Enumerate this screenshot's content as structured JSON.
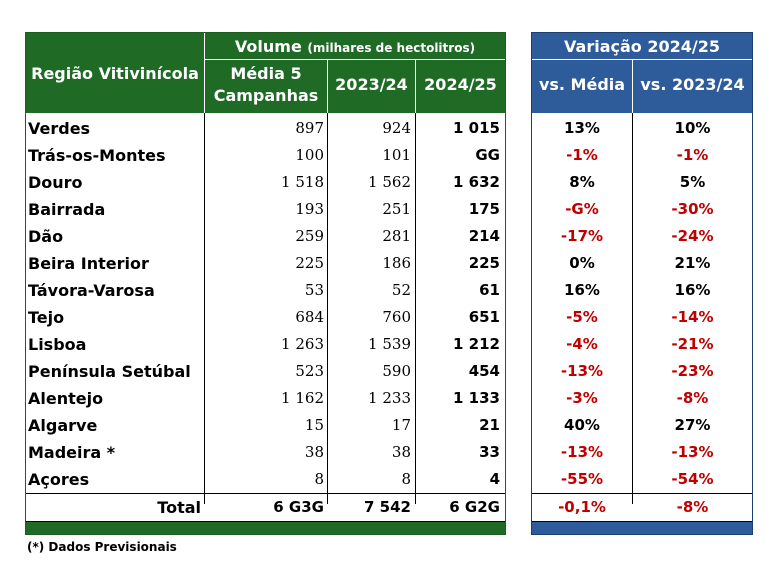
{
  "headers": {
    "region": "Região Vitivinícola",
    "volume": "Volume",
    "volume_unit": "(milhares de hectolitros)",
    "media5": "Média 5",
    "campanhas": "Campanhas",
    "y2023": "2023/24",
    "y2024": "2024/25",
    "variacao": "Variação 2024/25",
    "vs_media": "vs. Média",
    "vs_2023": "vs. 2023/24"
  },
  "rows": [
    {
      "region": "Verdes",
      "media5": "897",
      "y2023": "924",
      "y2024": "1 015",
      "vs_media": "13%",
      "vs_2023": "10%",
      "neg_media": false,
      "neg_2023": false
    },
    {
      "region": "Trás-os-Montes",
      "media5": "100",
      "y2023": "101",
      "y2024": "GG",
      "vs_media": "-1%",
      "vs_2023": "-1%",
      "neg_media": true,
      "neg_2023": true
    },
    {
      "region": "Douro",
      "media5": "1 518",
      "y2023": "1 562",
      "y2024": "1 632",
      "vs_media": "8%",
      "vs_2023": "5%",
      "neg_media": false,
      "neg_2023": false
    },
    {
      "region": "Bairrada",
      "media5": "193",
      "y2023": "251",
      "y2024": "175",
      "vs_media": "-G%",
      "vs_2023": "-30%",
      "neg_media": true,
      "neg_2023": true
    },
    {
      "region": "Dão",
      "media5": "259",
      "y2023": "281",
      "y2024": "214",
      "vs_media": "-17%",
      "vs_2023": "-24%",
      "neg_media": true,
      "neg_2023": true
    },
    {
      "region": "Beira Interior",
      "media5": "225",
      "y2023": "186",
      "y2024": "225",
      "vs_media": "0%",
      "vs_2023": "21%",
      "neg_media": false,
      "neg_2023": false
    },
    {
      "region": "Távora-Varosa",
      "media5": "53",
      "y2023": "52",
      "y2024": "61",
      "vs_media": "16%",
      "vs_2023": "16%",
      "neg_media": false,
      "neg_2023": false
    },
    {
      "region": "Tejo",
      "media5": "684",
      "y2023": "760",
      "y2024": "651",
      "vs_media": "-5%",
      "vs_2023": "-14%",
      "neg_media": true,
      "neg_2023": true
    },
    {
      "region": "Lisboa",
      "media5": "1 263",
      "y2023": "1 539",
      "y2024": "1 212",
      "vs_media": "-4%",
      "vs_2023": "-21%",
      "neg_media": true,
      "neg_2023": true
    },
    {
      "region": "Península Setúbal",
      "media5": "523",
      "y2023": "590",
      "y2024": "454",
      "vs_media": "-13%",
      "vs_2023": "-23%",
      "neg_media": true,
      "neg_2023": true
    },
    {
      "region": "Alentejo",
      "media5": "1 162",
      "y2023": "1 233",
      "y2024": "1 133",
      "vs_media": "-3%",
      "vs_2023": "-8%",
      "neg_media": true,
      "neg_2023": true
    },
    {
      "region": "Algarve",
      "media5": "15",
      "y2023": "17",
      "y2024": "21",
      "vs_media": "40%",
      "vs_2023": "27%",
      "neg_media": false,
      "neg_2023": false
    },
    {
      "region": "Madeira *",
      "media5": "38",
      "y2023": "38",
      "y2024": "33",
      "vs_media": "-13%",
      "vs_2023": "-13%",
      "neg_media": true,
      "neg_2023": true
    },
    {
      "region": "Açores",
      "media5": "8",
      "y2023": "8",
      "y2024": "4",
      "vs_media": "-55%",
      "vs_2023": "-54%",
      "neg_media": true,
      "neg_2023": true
    }
  ],
  "total": {
    "label": "Total",
    "media5": "6 G3G",
    "y2023": "7 542",
    "y2024": "6 G2G",
    "vs_media": "-0,1%",
    "vs_2023": "-8%"
  },
  "footnote": "(*) Dados Previsionais",
  "colors": {
    "green": "#1f6b26",
    "blue": "#2e5c9a",
    "negative": "#c00000"
  }
}
